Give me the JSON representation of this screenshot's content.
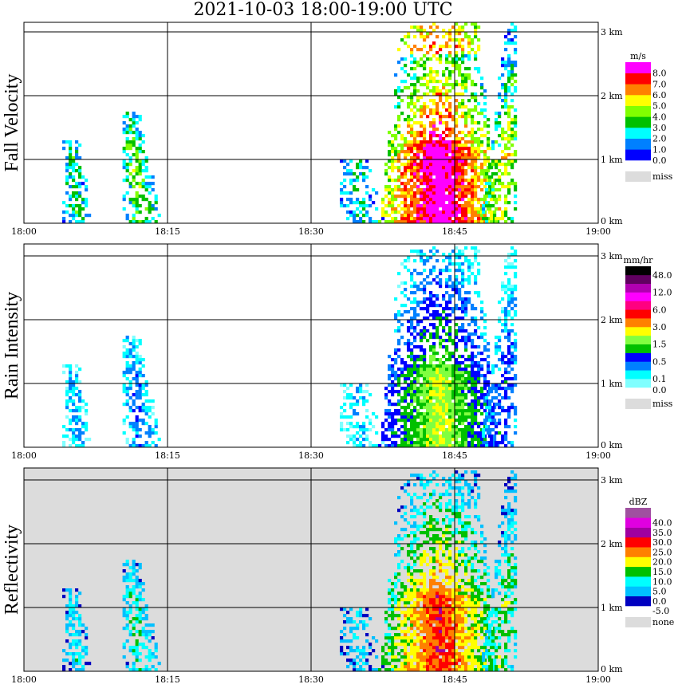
{
  "title": "2021-10-03   18:00-19:00 UTC",
  "chart_data": [
    {
      "type": "heatmap",
      "title": "Fall Velocity",
      "units": "m/s",
      "x_ticks": [
        "18:00",
        "18:15",
        "18:30",
        "18:45",
        "19:00"
      ],
      "y_ticks": [
        "0 km",
        "1 km",
        "2 km",
        "3 km"
      ],
      "xlim_min": [
        0,
        60
      ],
      "ylim_km": [
        0,
        3.15
      ],
      "levels": [
        "0.0",
        "1.0",
        "2.0",
        "3.0",
        "4.0",
        "5.0",
        "6.0",
        "7.0",
        "8.0"
      ],
      "colors": [
        "#0000ff",
        "#0080ff",
        "#00ffff",
        "#00c000",
        "#80ff00",
        "#ffff00",
        "#ff8000",
        "#ff0000",
        "#ff00ff"
      ],
      "missing_label": "miss",
      "missing_color": "#dcdcdc",
      "background": "#ffffff",
      "scale": 1.0
    },
    {
      "type": "heatmap",
      "title": "Rain Intensity",
      "units": "mm/hr",
      "x_ticks": [
        "18:00",
        "18:15",
        "18:30",
        "18:45",
        "19:00"
      ],
      "y_ticks": [
        "0 km",
        "1 km",
        "2 km",
        "3 km"
      ],
      "xlim_min": [
        0,
        60
      ],
      "ylim_km": [
        0,
        3.15
      ],
      "levels": [
        "0.0",
        "0.1",
        "",
        "0.5",
        "",
        "1.5",
        "",
        "3.0",
        "",
        "6.0",
        "",
        "12.0",
        "",
        "48.0"
      ],
      "colors": [
        "#80ffff",
        "#00ffff",
        "#0080ff",
        "#0000ff",
        "#00c000",
        "#80ff40",
        "#ffff00",
        "#ff8000",
        "#ff0000",
        "#ff0080",
        "#ff00ff",
        "#b000b0",
        "#600060",
        "#000000"
      ],
      "missing_label": "miss",
      "missing_color": "#dcdcdc",
      "background": "#ffffff",
      "scale": 0.42
    },
    {
      "type": "heatmap",
      "title": "Reflectivity",
      "units": "dBZ",
      "x_ticks": [
        "18:00",
        "18:15",
        "18:30",
        "18:45",
        "19:00"
      ],
      "y_ticks": [
        "0 km",
        "1 km",
        "2 km",
        "3 km"
      ],
      "xlim_min": [
        0,
        60
      ],
      "ylim_km": [
        0,
        3.15
      ],
      "levels": [
        "-5.0",
        "0.0",
        "5.0",
        "10.0",
        "15.0",
        "20.0",
        "25.0",
        "30.0",
        "35.0",
        "40.0"
      ],
      "colors": [
        "#0000c0",
        "#00c0ff",
        "#00ffff",
        "#00c000",
        "#ffff00",
        "#ff8000",
        "#ff0000",
        "#a000a0",
        "#e000e0",
        "#a050a0"
      ],
      "missing_label": "none",
      "missing_color": "#dcdcdc",
      "background": "#dcdcdc",
      "scale": 0.62
    }
  ],
  "echoes": [
    {
      "start_min": 4.0,
      "end_min": 7.0,
      "top_km": 1.3,
      "lean": -0.8,
      "strength": 0.35
    },
    {
      "start_min": 10.3,
      "end_min": 14.2,
      "top_km": 1.75,
      "lean": -1.5,
      "strength": 0.45
    },
    {
      "start_min": 33.0,
      "end_min": 37.5,
      "top_km": 1.0,
      "lean": -1.0,
      "strength": 0.3
    },
    {
      "start_min": 37.0,
      "end_min": 49.5,
      "top_km": 3.1,
      "lean": 0.0,
      "strength": 1.0
    },
    {
      "start_min": 47.5,
      "end_min": 51.5,
      "top_km": 3.1,
      "lean": 2.0,
      "strength": 0.6
    }
  ]
}
